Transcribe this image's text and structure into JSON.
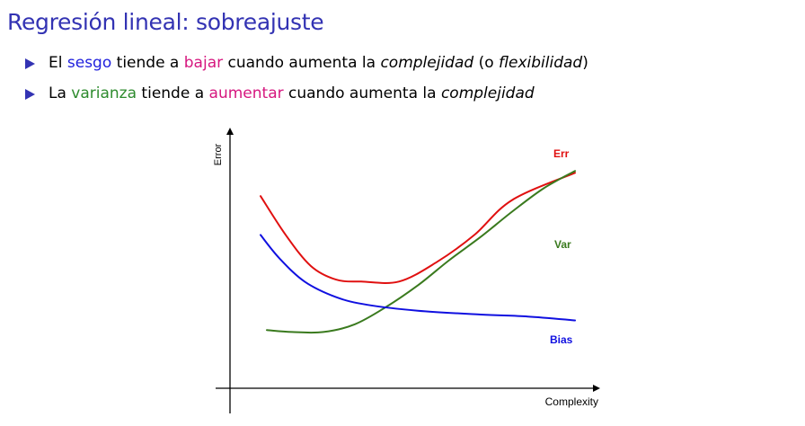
{
  "slide": {
    "title": "Regresión lineal: sobreajuste",
    "bullets": [
      {
        "segments": [
          {
            "text": "El ",
            "style": "plain"
          },
          {
            "text": "sesgo",
            "style": "blue"
          },
          {
            "text": " tiende a ",
            "style": "plain"
          },
          {
            "text": "bajar",
            "style": "magenta"
          },
          {
            "text": " cuando aumenta la ",
            "style": "plain"
          },
          {
            "text": "complejidad",
            "style": "em"
          },
          {
            "text": " (o ",
            "style": "plain"
          },
          {
            "text": "flexibilidad",
            "style": "em"
          },
          {
            "text": ")",
            "style": "plain"
          }
        ]
      },
      {
        "segments": [
          {
            "text": "La ",
            "style": "plain"
          },
          {
            "text": "varianza",
            "style": "green"
          },
          {
            "text": " tiende a ",
            "style": "plain"
          },
          {
            "text": "aumentar",
            "style": "magenta"
          },
          {
            "text": " cuando aumenta la ",
            "style": "plain"
          },
          {
            "text": "complejidad",
            "style": "em"
          }
        ]
      }
    ]
  },
  "figure": {
    "xlabel": "Complexity",
    "ylabel": "Error",
    "curves": [
      {
        "name": "Err",
        "color": "#e01010",
        "points": [
          [
            0.0,
            0.86
          ],
          [
            0.08,
            0.66
          ],
          [
            0.16,
            0.5
          ],
          [
            0.24,
            0.43
          ],
          [
            0.32,
            0.42
          ],
          [
            0.44,
            0.42
          ],
          [
            0.56,
            0.52
          ],
          [
            0.68,
            0.66
          ],
          [
            0.8,
            0.84
          ],
          [
            1.0,
            0.98
          ]
        ]
      },
      {
        "name": "Var",
        "color": "#3a7a1e",
        "points": [
          [
            0.02,
            0.17
          ],
          [
            0.1,
            0.16
          ],
          [
            0.2,
            0.16
          ],
          [
            0.3,
            0.2
          ],
          [
            0.4,
            0.29
          ],
          [
            0.5,
            0.4
          ],
          [
            0.6,
            0.53
          ],
          [
            0.7,
            0.65
          ],
          [
            0.8,
            0.78
          ],
          [
            0.9,
            0.9
          ],
          [
            1.0,
            0.99
          ]
        ]
      },
      {
        "name": "Bias",
        "color": "#1010e0",
        "points": [
          [
            0.0,
            0.66
          ],
          [
            0.06,
            0.54
          ],
          [
            0.14,
            0.42
          ],
          [
            0.24,
            0.34
          ],
          [
            0.34,
            0.3
          ],
          [
            0.5,
            0.27
          ],
          [
            0.7,
            0.25
          ],
          [
            0.85,
            0.24
          ],
          [
            1.0,
            0.22
          ]
        ]
      }
    ]
  }
}
